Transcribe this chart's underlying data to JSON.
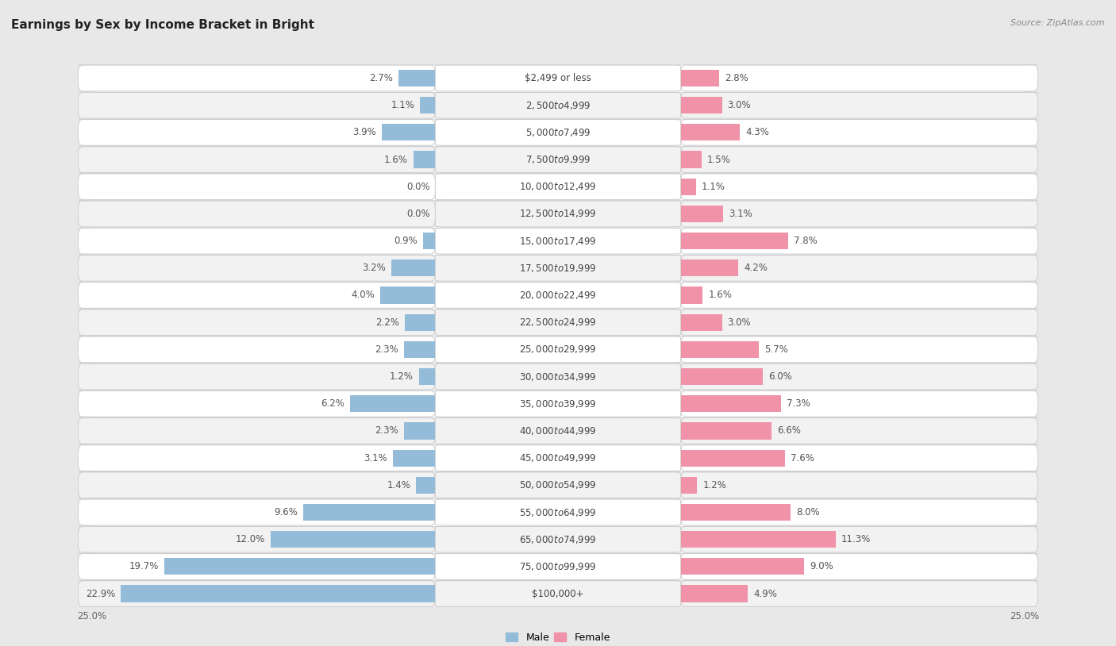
{
  "title": "Earnings by Sex by Income Bracket in Bright",
  "source": "Source: ZipAtlas.com",
  "categories": [
    "$2,499 or less",
    "$2,500 to $4,999",
    "$5,000 to $7,499",
    "$7,500 to $9,999",
    "$10,000 to $12,499",
    "$12,500 to $14,999",
    "$15,000 to $17,499",
    "$17,500 to $19,999",
    "$20,000 to $22,499",
    "$22,500 to $24,999",
    "$25,000 to $29,999",
    "$30,000 to $34,999",
    "$35,000 to $39,999",
    "$40,000 to $44,999",
    "$45,000 to $49,999",
    "$50,000 to $54,999",
    "$55,000 to $64,999",
    "$65,000 to $74,999",
    "$75,000 to $99,999",
    "$100,000+"
  ],
  "male_values": [
    2.7,
    1.1,
    3.9,
    1.6,
    0.0,
    0.0,
    0.9,
    3.2,
    4.0,
    2.2,
    2.3,
    1.2,
    6.2,
    2.3,
    3.1,
    1.4,
    9.6,
    12.0,
    19.7,
    22.9
  ],
  "female_values": [
    2.8,
    3.0,
    4.3,
    1.5,
    1.1,
    3.1,
    7.8,
    4.2,
    1.6,
    3.0,
    5.7,
    6.0,
    7.3,
    6.6,
    7.6,
    1.2,
    8.0,
    11.3,
    9.0,
    4.9
  ],
  "male_color": "#94bcd8",
  "female_color": "#f093a8",
  "male_label": "Male",
  "female_label": "Female",
  "xlim": 25.0,
  "bg_color": "#e8e8e8",
  "row_colors": [
    "#ffffff",
    "#f2f2f2"
  ],
  "title_fontsize": 11,
  "cat_fontsize": 8.5,
  "val_fontsize": 8.5,
  "axis_fontsize": 8.5
}
